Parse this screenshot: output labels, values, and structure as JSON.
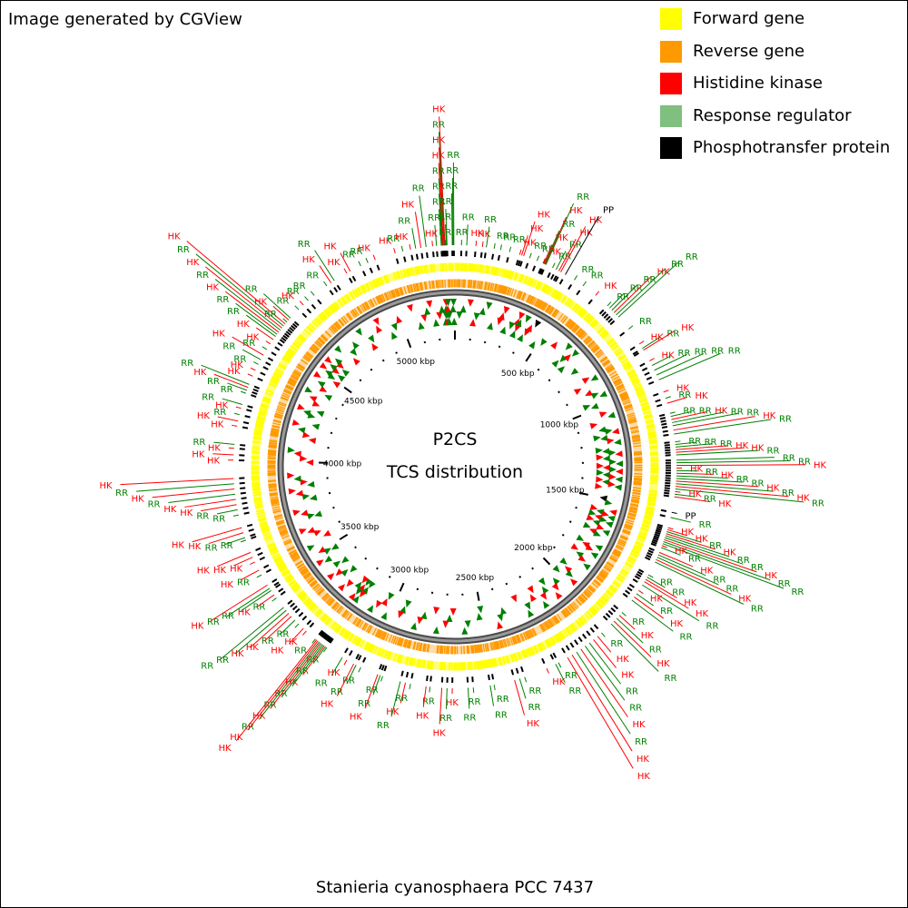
{
  "header": {
    "credit": "Image generated by CGView"
  },
  "map": {
    "title": "P2CS",
    "subtitle": "TCS distribution",
    "organism": "Stanieria cyanosphaera PCC 7437",
    "genome_length_kbp": 5300,
    "tick_labels": [
      "500 kbp",
      "1000 kbp",
      "1500 kbp",
      "2000 kbp",
      "2500 kbp",
      "3000 kbp",
      "3500 kbp",
      "4000 kbp",
      "4500 kbp",
      "5000 kbp"
    ]
  },
  "legend": {
    "items": [
      {
        "label": "Forward gene",
        "color": "#ffff00"
      },
      {
        "label": "Reverse gene",
        "color": "#ff9900"
      },
      {
        "label": "Histidine kinase",
        "color": "#ff0000"
      },
      {
        "label": "Response regulator",
        "color": "#7fbf7f"
      },
      {
        "label": "Phosphotransfer protein",
        "color": "#000000"
      }
    ]
  },
  "colors": {
    "forward": "#ffff00",
    "reverse": "#ff9900",
    "backbone": "#808080",
    "histidine_kinase": "#ff0000",
    "response_regulator": "#008000",
    "phosphotransfer": "#000000"
  },
  "features": [
    {
      "type": "RR",
      "pos_kbp": 5248
    },
    {
      "type": "RR",
      "pos_kbp": 5251
    },
    {
      "type": "RR",
      "pos_kbp": 5253
    },
    {
      "type": "HK",
      "pos_kbp": 5255
    },
    {
      "type": "HK",
      "pos_kbp": 5258
    },
    {
      "type": "RR",
      "pos_kbp": 5260
    },
    {
      "type": "HK",
      "pos_kbp": 5262
    },
    {
      "type": "RR",
      "pos_kbp": 5265
    },
    {
      "type": "RR",
      "pos_kbp": 5267
    },
    {
      "type": "RR",
      "pos_kbp": 5270
    },
    {
      "type": "RR",
      "pos_kbp": 5290
    },
    {
      "type": "RR",
      "pos_kbp": 5293
    },
    {
      "type": "RR",
      "pos_kbp": 5296
    },
    {
      "type": "RR",
      "pos_kbp": 25
    },
    {
      "type": "RR",
      "pos_kbp": 45
    },
    {
      "type": "HK",
      "pos_kbp": 80
    },
    {
      "type": "HK",
      "pos_kbp": 105
    },
    {
      "type": "RR",
      "pos_kbp": 120
    },
    {
      "type": "RR",
      "pos_kbp": 150
    },
    {
      "type": "RR",
      "pos_kbp": 175
    },
    {
      "type": "RR",
      "pos_kbp": 210
    },
    {
      "type": "HK",
      "pos_kbp": 250
    },
    {
      "type": "HK",
      "pos_kbp": 258
    },
    {
      "type": "HK",
      "pos_kbp": 266
    },
    {
      "type": "RR",
      "pos_kbp": 290
    },
    {
      "type": "RR",
      "pos_kbp": 320
    },
    {
      "type": "HK",
      "pos_kbp": 345
    },
    {
      "type": "HK",
      "pos_kbp": 348
    },
    {
      "type": "RR",
      "pos_kbp": 351
    },
    {
      "type": "HK",
      "pos_kbp": 354
    },
    {
      "type": "RR",
      "pos_kbp": 357
    },
    {
      "type": "RR",
      "pos_kbp": 385
    },
    {
      "type": "RR",
      "pos_kbp": 400
    },
    {
      "type": "HK",
      "pos_kbp": 412
    },
    {
      "type": "HK",
      "pos_kbp": 420
    },
    {
      "type": "PP",
      "pos_kbp": 440
    },
    {
      "type": "RR",
      "pos_kbp": 480
    },
    {
      "type": "RR",
      "pos_kbp": 520
    },
    {
      "type": "HK",
      "pos_kbp": 580
    },
    {
      "type": "RR",
      "pos_kbp": 640
    },
    {
      "type": "RR",
      "pos_kbp": 652
    },
    {
      "type": "RR",
      "pos_kbp": 664
    },
    {
      "type": "HK",
      "pos_kbp": 676
    },
    {
      "type": "RR",
      "pos_kbp": 688
    },
    {
      "type": "RR",
      "pos_kbp": 700
    },
    {
      "type": "RR",
      "pos_kbp": 760
    },
    {
      "type": "HK",
      "pos_kbp": 830
    },
    {
      "type": "RR",
      "pos_kbp": 850
    },
    {
      "type": "HK",
      "pos_kbp": 858
    },
    {
      "type": "HK",
      "pos_kbp": 905
    },
    {
      "type": "RR",
      "pos_kbp": 925
    },
    {
      "type": "RR",
      "pos_kbp": 945
    },
    {
      "type": "RR",
      "pos_kbp": 965
    },
    {
      "type": "RR",
      "pos_kbp": 985
    },
    {
      "type": "HK",
      "pos_kbp": 1035
    },
    {
      "type": "RR",
      "pos_kbp": 1060
    },
    {
      "type": "HK",
      "pos_kbp": 1080
    },
    {
      "type": "RR",
      "pos_kbp": 1120
    },
    {
      "type": "RR",
      "pos_kbp": 1132
    },
    {
      "type": "HK",
      "pos_kbp": 1144
    },
    {
      "type": "RR",
      "pos_kbp": 1156
    },
    {
      "type": "RR",
      "pos_kbp": 1168
    },
    {
      "type": "HK",
      "pos_kbp": 1185
    },
    {
      "type": "RR",
      "pos_kbp": 1200
    },
    {
      "type": "RR",
      "pos_kbp": 1230
    },
    {
      "type": "RR",
      "pos_kbp": 1240
    },
    {
      "type": "RR",
      "pos_kbp": 1250
    },
    {
      "type": "HK",
      "pos_kbp": 1260
    },
    {
      "type": "HK",
      "pos_kbp": 1270
    },
    {
      "type": "RR",
      "pos_kbp": 1280
    },
    {
      "type": "RR",
      "pos_kbp": 1300
    },
    {
      "type": "RR",
      "pos_kbp": 1310
    },
    {
      "type": "HK",
      "pos_kbp": 1320
    },
    {
      "type": "HK",
      "pos_kbp": 1330
    },
    {
      "type": "RR",
      "pos_kbp": 1340
    },
    {
      "type": "HK",
      "pos_kbp": 1350
    },
    {
      "type": "RR",
      "pos_kbp": 1360
    },
    {
      "type": "RR",
      "pos_kbp": 1370
    },
    {
      "type": "HK",
      "pos_kbp": 1380
    },
    {
      "type": "RR",
      "pos_kbp": 1390
    },
    {
      "type": "HK",
      "pos_kbp": 1400
    },
    {
      "type": "RR",
      "pos_kbp": 1410
    },
    {
      "type": "HK",
      "pos_kbp": 1420
    },
    {
      "type": "RR",
      "pos_kbp": 1430
    },
    {
      "type": "HK",
      "pos_kbp": 1440
    },
    {
      "type": "PP",
      "pos_kbp": 1500
    },
    {
      "type": "RR",
      "pos_kbp": 1520
    },
    {
      "type": "HK",
      "pos_kbp": 1560
    },
    {
      "type": "HK",
      "pos_kbp": 1568
    },
    {
      "type": "RR",
      "pos_kbp": 1576
    },
    {
      "type": "HK",
      "pos_kbp": 1584
    },
    {
      "type": "RR",
      "pos_kbp": 1592
    },
    {
      "type": "RR",
      "pos_kbp": 1600
    },
    {
      "type": "HK",
      "pos_kbp": 1608
    },
    {
      "type": "RR",
      "pos_kbp": 1616
    },
    {
      "type": "RR",
      "pos_kbp": 1624
    },
    {
      "type": "HK",
      "pos_kbp": 1632
    },
    {
      "type": "RR",
      "pos_kbp": 1640
    },
    {
      "type": "HK",
      "pos_kbp": 1660
    },
    {
      "type": "RR",
      "pos_kbp": 1670
    },
    {
      "type": "RR",
      "pos_kbp": 1680
    },
    {
      "type": "HK",
      "pos_kbp": 1690
    },
    {
      "type": "RR",
      "pos_kbp": 1700
    },
    {
      "type": "RR",
      "pos_kbp": 1755
    },
    {
      "type": "RR",
      "pos_kbp": 1765
    },
    {
      "type": "HK",
      "pos_kbp": 1775
    },
    {
      "type": "HK",
      "pos_kbp": 1785
    },
    {
      "type": "RR",
      "pos_kbp": 1800
    },
    {
      "type": "HK",
      "pos_kbp": 1825
    },
    {
      "type": "RR",
      "pos_kbp": 1840
    },
    {
      "type": "HK",
      "pos_kbp": 1855
    },
    {
      "type": "RR",
      "pos_kbp": 1870
    },
    {
      "type": "RR",
      "pos_kbp": 1930
    },
    {
      "type": "HK",
      "pos_kbp": 1945
    },
    {
      "type": "RR",
      "pos_kbp": 1960
    },
    {
      "type": "HK",
      "pos_kbp": 1975
    },
    {
      "type": "RR",
      "pos_kbp": 1990
    },
    {
      "type": "RR",
      "pos_kbp": 2040
    },
    {
      "type": "HK",
      "pos_kbp": 2060
    },
    {
      "type": "HK",
      "pos_kbp": 2080
    },
    {
      "type": "RR",
      "pos_kbp": 2100
    },
    {
      "type": "RR",
      "pos_kbp": 2120
    },
    {
      "type": "HK",
      "pos_kbp": 2140
    },
    {
      "type": "RR",
      "pos_kbp": 2160
    },
    {
      "type": "HK",
      "pos_kbp": 2180
    },
    {
      "type": "HK",
      "pos_kbp": 2200
    },
    {
      "type": "RR",
      "pos_kbp": 2240
    },
    {
      "type": "RR",
      "pos_kbp": 2252
    },
    {
      "type": "HK",
      "pos_kbp": 2290
    },
    {
      "type": "RR",
      "pos_kbp": 2380
    },
    {
      "type": "RR",
      "pos_kbp": 2400
    },
    {
      "type": "HK",
      "pos_kbp": 2420
    },
    {
      "type": "RR",
      "pos_kbp": 2500
    },
    {
      "type": "RR",
      "pos_kbp": 2515
    },
    {
      "type": "RR",
      "pos_kbp": 2580
    },
    {
      "type": "RR",
      "pos_kbp": 2600
    },
    {
      "type": "HK",
      "pos_kbp": 2660
    },
    {
      "type": "RR",
      "pos_kbp": 2680
    },
    {
      "type": "HK",
      "pos_kbp": 2700
    },
    {
      "type": "RR",
      "pos_kbp": 2745
    },
    {
      "type": "HK",
      "pos_kbp": 2760
    },
    {
      "type": "RR",
      "pos_kbp": 2820
    },
    {
      "type": "HK",
      "pos_kbp": 2840
    },
    {
      "type": "RR",
      "pos_kbp": 2860
    },
    {
      "type": "RR",
      "pos_kbp": 2930
    },
    {
      "type": "RR",
      "pos_kbp": 2940
    },
    {
      "type": "HK",
      "pos_kbp": 2950
    },
    {
      "type": "RR",
      "pos_kbp": 3020
    },
    {
      "type": "RR",
      "pos_kbp": 3040
    },
    {
      "type": "HK",
      "pos_kbp": 3050
    },
    {
      "type": "HK",
      "pos_kbp": 3080
    },
    {
      "type": "RR",
      "pos_kbp": 3100
    },
    {
      "type": "RR",
      "pos_kbp": 3170
    },
    {
      "type": "RR",
      "pos_kbp": 3176
    },
    {
      "type": "HK",
      "pos_kbp": 3182
    },
    {
      "type": "RR",
      "pos_kbp": 3188
    },
    {
      "type": "RR",
      "pos_kbp": 3194
    },
    {
      "type": "HK",
      "pos_kbp": 3200
    },
    {
      "type": "RR",
      "pos_kbp": 3206
    },
    {
      "type": "HK",
      "pos_kbp": 3212
    },
    {
      "type": "HK",
      "pos_kbp": 3218
    },
    {
      "type": "RR",
      "pos_kbp": 3224
    },
    {
      "type": "HK",
      "pos_kbp": 3270
    },
    {
      "type": "HK",
      "pos_kbp": 3285
    },
    {
      "type": "RR",
      "pos_kbp": 3310
    },
    {
      "type": "RR",
      "pos_kbp": 3330
    },
    {
      "type": "HK",
      "pos_kbp": 3350
    },
    {
      "type": "HK",
      "pos_kbp": 3365
    },
    {
      "type": "RR",
      "pos_kbp": 3380
    },
    {
      "type": "RR",
      "pos_kbp": 3395
    },
    {
      "type": "RR",
      "pos_kbp": 3440
    },
    {
      "type": "HK",
      "pos_kbp": 3455
    },
    {
      "type": "RR",
      "pos_kbp": 3475
    },
    {
      "type": "RR",
      "pos_kbp": 3485
    },
    {
      "type": "HK",
      "pos_kbp": 3500
    },
    {
      "type": "RR",
      "pos_kbp": 3545
    },
    {
      "type": "HK",
      "pos_kbp": 3565
    },
    {
      "type": "HK",
      "pos_kbp": 3600
    },
    {
      "type": "HK",
      "pos_kbp": 3620
    },
    {
      "type": "HK",
      "pos_kbp": 3640
    },
    {
      "type": "RR",
      "pos_kbp": 3690
    },
    {
      "type": "RR",
      "pos_kbp": 3700
    },
    {
      "type": "HK",
      "pos_kbp": 3720
    },
    {
      "type": "HK",
      "pos_kbp": 3740
    },
    {
      "type": "RR",
      "pos_kbp": 3790
    },
    {
      "type": "RR",
      "pos_kbp": 3810
    },
    {
      "type": "HK",
      "pos_kbp": 3830
    },
    {
      "type": "HK",
      "pos_kbp": 3850
    },
    {
      "type": "RR",
      "pos_kbp": 3870
    },
    {
      "type": "HK",
      "pos_kbp": 3890
    },
    {
      "type": "RR",
      "pos_kbp": 3910
    },
    {
      "type": "HK",
      "pos_kbp": 3930
    },
    {
      "type": "HK",
      "pos_kbp": 4000
    },
    {
      "type": "HK",
      "pos_kbp": 4020
    },
    {
      "type": "HK",
      "pos_kbp": 4045
    },
    {
      "type": "RR",
      "pos_kbp": 4060
    },
    {
      "type": "HK",
      "pos_kbp": 4130
    },
    {
      "type": "HK",
      "pos_kbp": 4150
    },
    {
      "type": "RR",
      "pos_kbp": 4175
    },
    {
      "type": "HK",
      "pos_kbp": 4200
    },
    {
      "type": "RR",
      "pos_kbp": 4215
    },
    {
      "type": "RR",
      "pos_kbp": 4260
    },
    {
      "type": "RR",
      "pos_kbp": 4272
    },
    {
      "type": "HK",
      "pos_kbp": 4284
    },
    {
      "type": "RR",
      "pos_kbp": 4296
    },
    {
      "type": "HK",
      "pos_kbp": 4330
    },
    {
      "type": "HK",
      "pos_kbp": 4355
    },
    {
      "type": "RR",
      "pos_kbp": 4380
    },
    {
      "type": "RR",
      "pos_kbp": 4400
    },
    {
      "type": "HK",
      "pos_kbp": 4420
    },
    {
      "type": "RR",
      "pos_kbp": 4445
    },
    {
      "type": "HK",
      "pos_kbp": 4470
    },
    {
      "type": "HK",
      "pos_kbp": 4490
    },
    {
      "type": "RR",
      "pos_kbp": 4505
    },
    {
      "type": "RR",
      "pos_kbp": 4515
    },
    {
      "type": "HK",
      "pos_kbp": 4525
    },
    {
      "type": "RR",
      "pos_kbp": 4535
    },
    {
      "type": "HK",
      "pos_kbp": 4545
    },
    {
      "type": "RR",
      "pos_kbp": 4555
    },
    {
      "type": "HK",
      "pos_kbp": 4565
    },
    {
      "type": "RR",
      "pos_kbp": 4575
    },
    {
      "type": "HK",
      "pos_kbp": 4585
    },
    {
      "type": "RR",
      "pos_kbp": 4595
    },
    {
      "type": "RR",
      "pos_kbp": 4640
    },
    {
      "type": "HK",
      "pos_kbp": 4665
    },
    {
      "type": "RR",
      "pos_kbp": 4690
    },
    {
      "type": "RR",
      "pos_kbp": 4720
    },
    {
      "type": "RR",
      "pos_kbp": 4780
    },
    {
      "type": "HK",
      "pos_kbp": 4800
    },
    {
      "type": "RR",
      "pos_kbp": 4815
    },
    {
      "type": "HK",
      "pos_kbp": 4870
    },
    {
      "type": "HK",
      "pos_kbp": 4885
    },
    {
      "type": "RR",
      "pos_kbp": 4930
    },
    {
      "type": "RR",
      "pos_kbp": 4960
    },
    {
      "type": "HK",
      "pos_kbp": 4990
    },
    {
      "type": "HK",
      "pos_kbp": 5070
    },
    {
      "type": "RR",
      "pos_kbp": 5100
    },
    {
      "type": "HK",
      "pos_kbp": 5130
    },
    {
      "type": "RR",
      "pos_kbp": 5150
    },
    {
      "type": "HK",
      "pos_kbp": 5170
    },
    {
      "type": "RR",
      "pos_kbp": 5190
    },
    {
      "type": "HK",
      "pos_kbp": 5215
    },
    {
      "type": "RR",
      "pos_kbp": 5230
    }
  ]
}
